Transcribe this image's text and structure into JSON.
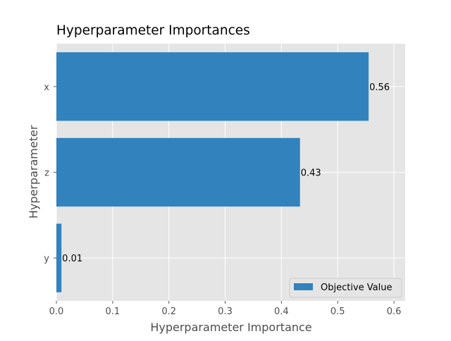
{
  "chart_data": {
    "type": "bar",
    "orientation": "horizontal",
    "title": "Hyperparameter Importances",
    "xlabel": "Hyperparameter Importance",
    "ylabel": "Hyperparameter",
    "categories": [
      "x",
      "z",
      "y"
    ],
    "series": [
      {
        "name": "Objective Value",
        "values": [
          0.555,
          0.433,
          0.009
        ],
        "value_labels": [
          "0.56",
          "0.43",
          "0.01"
        ],
        "color": "#3182bd"
      }
    ],
    "xlim": [
      0,
      0.62
    ],
    "xticks": [
      0.0,
      0.1,
      0.2,
      0.3,
      0.4,
      0.5,
      0.6
    ],
    "xtick_labels": [
      "0.0",
      "0.1",
      "0.2",
      "0.3",
      "0.4",
      "0.5",
      "0.6"
    ],
    "grid": true,
    "legend_position": "lower-right",
    "plot_background": "#e5e5e5",
    "grid_color": "#ffffff"
  }
}
